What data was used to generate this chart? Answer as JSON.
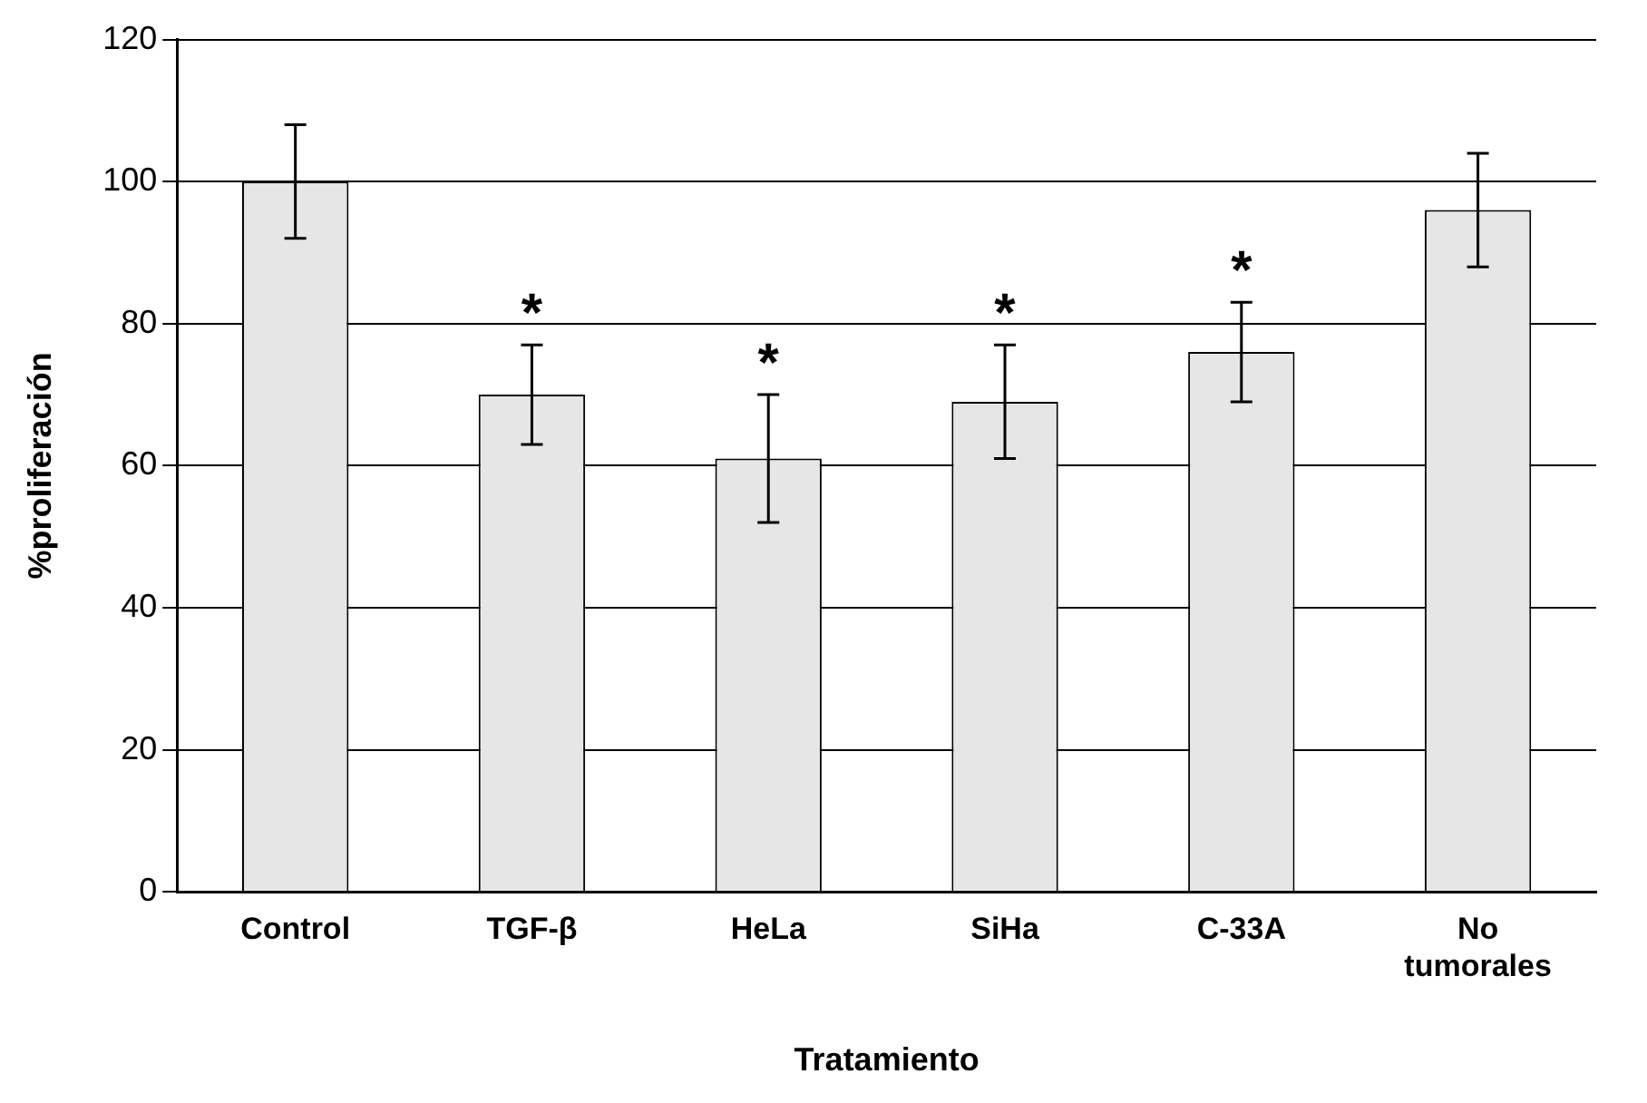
{
  "chart_data": {
    "type": "bar",
    "xlabel": "Tratamiento",
    "ylabel": "%proliferación",
    "categories": [
      "Control",
      "TGF-β",
      "HeLa",
      "SiHa",
      "C-33A",
      "No tumorales"
    ],
    "values": [
      100,
      70,
      61,
      69,
      76,
      96
    ],
    "errors": [
      8,
      7,
      9,
      8,
      7,
      8
    ],
    "color": "#e6e6e6",
    "ylim": [
      0,
      120
    ],
    "yticks": [
      0,
      20,
      40,
      60,
      80,
      100,
      120
    ],
    "grid": "y",
    "legend": false,
    "annotations": [
      {
        "text": "*",
        "x": "TGF-β",
        "y": 77
      },
      {
        "text": "*",
        "x": "HeLa",
        "y": 70
      },
      {
        "text": "*",
        "x": "SiHa",
        "y": 77
      },
      {
        "text": "*",
        "x": "C-33A",
        "y": 83
      }
    ]
  }
}
